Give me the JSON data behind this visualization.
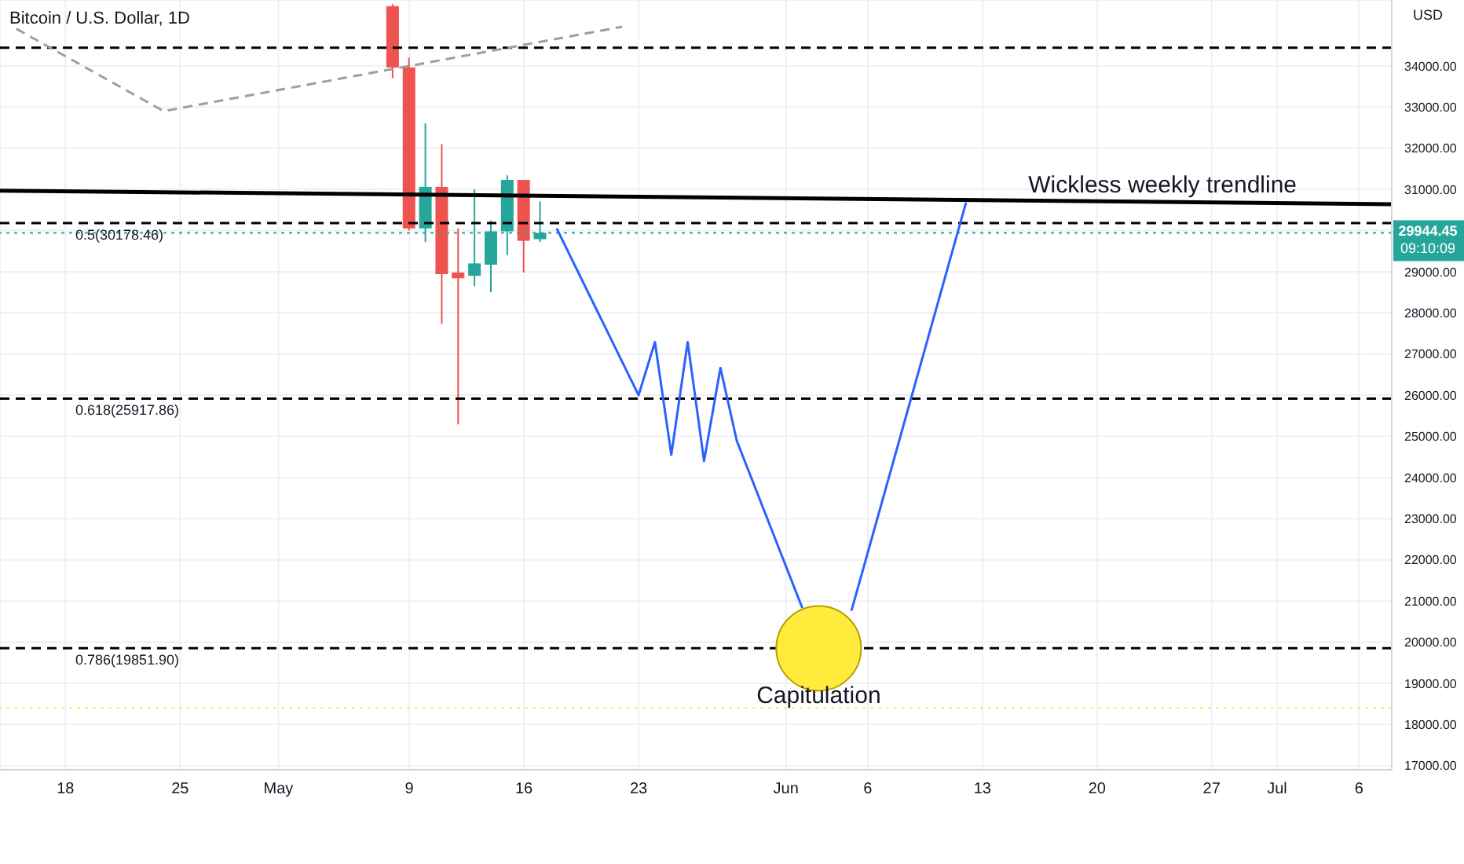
{
  "chart_data": {
    "type": "candlestick",
    "title": "Bitcoin / U.S. Dollar, 1D",
    "ylabel": "USD",
    "x": [
      "--05-08",
      "--05-09",
      "--05-10",
      "--05-11",
      "--05-12",
      "--05-13",
      "--05-14",
      "--05-15",
      "--05-16",
      "--05-17"
    ],
    "ohlc": [
      [
        35450,
        35500,
        33700,
        33960
      ],
      [
        33960,
        34200,
        30000,
        30050
      ],
      [
        30050,
        32600,
        29720,
        31060
      ],
      [
        31060,
        32100,
        27730,
        28940
      ],
      [
        28980,
        30050,
        25290,
        28840
      ],
      [
        28900,
        31000,
        28650,
        29200
      ],
      [
        29170,
        30240,
        28500,
        29980
      ],
      [
        29980,
        31340,
        29400,
        31230
      ],
      [
        31230,
        31230,
        28980,
        29750
      ],
      [
        29790,
        30710,
        29720,
        29944
      ]
    ],
    "colors": [
      "#ef5350",
      "#ef5350",
      "#26a69a",
      "#ef5350",
      "#ef5350",
      "#26a69a",
      "#26a69a",
      "#26a69a",
      "#ef5350",
      "#26a69a"
    ],
    "series": [
      {
        "type": "line",
        "color": "#000000",
        "x": [
          "--04-14",
          "--07-08"
        ],
        "values": [
          30970,
          30640
        ]
      },
      {
        "type": "line",
        "color": "#9e9e9e",
        "line_style": "dashed",
        "x": [
          "--04-15",
          "--04-24",
          "--05-22"
        ],
        "values": [
          34900,
          32900,
          34950
        ]
      },
      {
        "type": "line",
        "color": "#2962ff",
        "x": [
          "--05-18",
          "--05-23",
          "--05-24",
          "--05-25",
          "--05-26",
          "--05-27",
          "--05-28",
          "--05-29",
          "--06-02"
        ],
        "values": [
          30050,
          26000,
          27290,
          24550,
          27290,
          24400,
          26660,
          24890,
          20830
        ]
      },
      {
        "type": "line",
        "color": "#2962ff",
        "x": [
          "--06-05",
          "--06-12"
        ],
        "values": [
          20760,
          30680
        ]
      },
      {
        "type": "scatter",
        "color": "#ffeb3b",
        "marker": "circle",
        "x": [
          "--06-03"
        ],
        "values": [
          19850
        ]
      }
    ],
    "xlim": [
      "--04-14",
      "--07-08"
    ],
    "xticks": [
      {
        "value": "--04-18",
        "label": "18"
      },
      {
        "value": "--04-25",
        "label": "25"
      },
      {
        "value": "--05-01",
        "label": "May"
      },
      {
        "value": "--05-09",
        "label": "9"
      },
      {
        "value": "--05-16",
        "label": "16"
      },
      {
        "value": "--05-23",
        "label": "23"
      },
      {
        "value": "--06-01",
        "label": "Jun"
      },
      {
        "value": "--06-06",
        "label": "6"
      },
      {
        "value": "--06-13",
        "label": "13"
      },
      {
        "value": "--06-20",
        "label": "20"
      },
      {
        "value": "--06-27",
        "label": "27"
      },
      {
        "value": "--07-01",
        "label": "Jul"
      },
      {
        "value": "--07-06",
        "label": "6"
      }
    ],
    "ylim": [
      16900,
      35600
    ],
    "yticks": [
      {
        "value": 17000,
        "label": "17000.00"
      },
      {
        "value": 18000,
        "label": "18000.00"
      },
      {
        "value": 19000,
        "label": "19000.00"
      },
      {
        "value": 20000,
        "label": "20000.00"
      },
      {
        "value": 21000,
        "label": "21000.00"
      },
      {
        "value": 22000,
        "label": "22000.00"
      },
      {
        "value": 23000,
        "label": "23000.00"
      },
      {
        "value": 24000,
        "label": "24000.00"
      },
      {
        "value": 25000,
        "label": "25000.00"
      },
      {
        "value": 26000,
        "label": "26000.00"
      },
      {
        "value": 27000,
        "label": "27000.00"
      },
      {
        "value": 28000,
        "label": "28000.00"
      },
      {
        "value": 29000,
        "label": "29000.00"
      },
      {
        "value": 30000,
        "label": null
      },
      {
        "value": 31000,
        "label": "31000.00"
      },
      {
        "value": 32000,
        "label": "32000.00"
      },
      {
        "value": 33000,
        "label": "33000.00"
      },
      {
        "value": 34000,
        "label": "34000.00"
      }
    ],
    "ref_lines": [
      {
        "axis": "y",
        "value": 34440,
        "line_style": "dashed"
      },
      {
        "axis": "y",
        "value": 30178.46,
        "label": "0.5(30178.46)",
        "line_style": "dashed"
      },
      {
        "axis": "y",
        "value": 25917.86,
        "label": "0.618(25917.86)",
        "line_style": "dashed"
      },
      {
        "axis": "y",
        "value": 19851.9,
        "label": "0.786(19851.90)",
        "line_style": "dashed"
      },
      {
        "axis": "y",
        "value": 29944.45,
        "label": "29944.45",
        "color": "#26a69a",
        "line_style": "dotted"
      },
      {
        "axis": "y",
        "value": 18400,
        "color": "#ffeb3b",
        "line_style": "dotted"
      }
    ],
    "annotations": [
      {
        "text": "Wickless weekly trendline",
        "x": "--06-24",
        "y": 30694
      },
      {
        "text": "Capitulation",
        "x": "--06-03",
        "y": 18300
      },
      "09:10:09"
    ],
    "grid": true
  }
}
